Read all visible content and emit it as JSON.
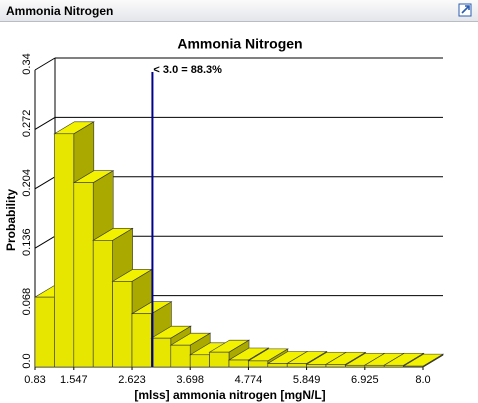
{
  "panel_title": "Ammonia Nitrogen",
  "chart_data": {
    "type": "histogram",
    "title": "Ammonia Nitrogen",
    "x_label": "[mlss] ammonia nitrogen [mgN/L]",
    "y_label": "Probability",
    "bins": [
      0.83,
      1.1885,
      1.547,
      1.9055,
      2.264,
      2.6225,
      2.981,
      3.3395,
      3.698,
      4.0565,
      4.415,
      4.7735,
      5.132,
      5.4905,
      5.849,
      6.2075,
      6.566,
      6.9245,
      7.283,
      7.6415,
      8.0
    ],
    "values": [
      0.08,
      0.267,
      0.211,
      0.145,
      0.098,
      0.061,
      0.033,
      0.025,
      0.014,
      0.017,
      0.008,
      0.007,
      0.004,
      0.004,
      0.003,
      0.003,
      0.002,
      0.002,
      0.002,
      0.001
    ],
    "color": "#e6e600",
    "xlim": [
      0.83,
      8.0
    ],
    "xticks": [
      0.83,
      1.547,
      2.623,
      3.698,
      4.774,
      5.849,
      6.925,
      {
        "value": 8.0,
        "label": "8.0"
      }
    ],
    "ylim": [
      0,
      0.34
    ],
    "yticks": [
      {
        "value": 0,
        "label": "0.0"
      },
      0.068,
      0.136,
      0.204,
      0.272,
      0.34
    ],
    "grid": true,
    "annotations": [
      {
        "x": 3.0,
        "label": "< 3.0 = 88.3%",
        "color": "#00008b"
      }
    ]
  }
}
